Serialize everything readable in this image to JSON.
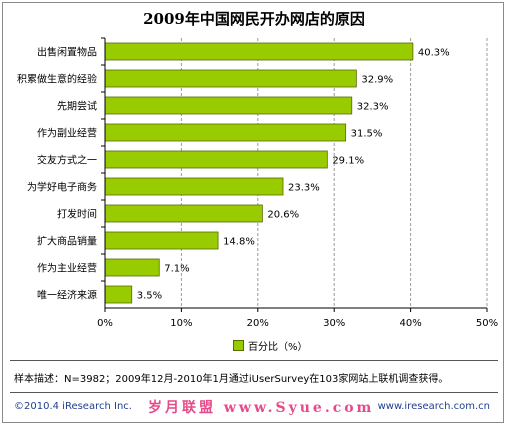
{
  "chart_data": {
    "type": "bar",
    "orientation": "horizontal",
    "title": "2009年中国网民开办网店的原因",
    "categories": [
      "出售闲置物品",
      "积累做生意的经验",
      "先期尝试",
      "作为副业经营",
      "交友方式之一",
      "为学好电子商务",
      "打发时间",
      "扩大商品销量",
      "作为主业经营",
      "唯一经济来源"
    ],
    "series": [
      {
        "name": "百分比（%）",
        "values": [
          40.3,
          32.9,
          32.3,
          31.5,
          29.1,
          23.3,
          20.6,
          14.8,
          7.1,
          3.5
        ],
        "labels": [
          "40.3%",
          "32.9%",
          "32.3%",
          "31.5%",
          "29.1%",
          "23.3%",
          "20.6%",
          "14.8%",
          "7.1%",
          "3.5%"
        ]
      }
    ],
    "xlim": [
      0,
      50
    ],
    "xticks": [
      0,
      10,
      20,
      30,
      40,
      50
    ],
    "xtick_labels": [
      "0%",
      "10%",
      "20%",
      "30%",
      "40%",
      "50%"
    ],
    "grid": "vertical dashed",
    "legend": "bottom",
    "bar_color": "#99cc00",
    "bar_border_color": "#556b00"
  },
  "footer": {
    "note": "样本描述：N=3982；2009年12月-2010年1月通过iUserSurvey在103家网站上联机调查获得。",
    "copyright": "©2010.4 iResearch Inc.",
    "watermark": "岁月联盟 www.Syue.com",
    "website": "www.iresearch.com.cn"
  }
}
